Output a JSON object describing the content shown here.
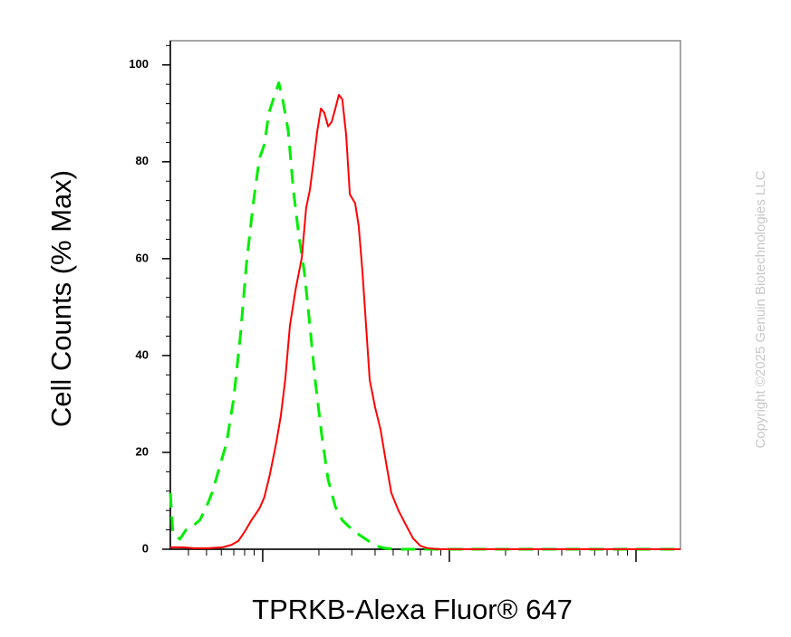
{
  "chart_data": {
    "type": "line",
    "x_label": "TPRKB-Alexa Fluor® 647",
    "y_label": "Cell Counts (% Max)",
    "watermark": "Copyright ©2025 Genuin Biotechnologies LLC",
    "xscale": "log",
    "xlim": [
      32,
      17300
    ],
    "xticks": [
      100,
      1000,
      10000
    ],
    "ylim": [
      0,
      105
    ],
    "yticks": [
      0,
      20,
      40,
      60,
      80,
      100
    ],
    "grid": false,
    "series": [
      {
        "color": "#00ee00",
        "line_style": "dashed",
        "x": [
          32,
          33,
          36,
          39,
          42,
          46,
          50,
          54,
          58,
          64,
          70,
          76,
          82,
          89,
          96,
          102,
          108,
          116,
          122,
          128,
          137,
          146,
          156,
          167,
          179,
          191,
          207,
          224,
          245,
          267,
          289,
          323,
          362,
          404,
          452,
          535,
          17300
        ],
        "values": [
          11.6,
          3.2,
          2.1,
          4.1,
          4.7,
          6.0,
          8.8,
          12.0,
          16.3,
          21.9,
          31.2,
          44.3,
          59.3,
          71.4,
          80.7,
          83.5,
          90.1,
          93.8,
          96.3,
          92.9,
          86.4,
          74.2,
          64.9,
          57.4,
          46.2,
          35.0,
          23.7,
          14.4,
          8.8,
          6.0,
          4.7,
          3.2,
          1.9,
          0.7,
          0.2,
          0,
          0
        ]
      },
      {
        "color": "#ff0000",
        "line_style": "solid",
        "x": [
          32,
          37,
          43,
          51,
          61,
          68,
          74,
          80,
          87,
          96,
          102,
          109,
          118,
          125,
          132,
          140,
          150,
          162,
          171,
          179,
          187,
          196,
          205,
          214,
          224,
          234,
          245,
          256,
          267,
          280,
          293,
          313,
          327,
          342,
          358,
          374,
          400,
          428,
          457,
          489,
          535,
          585,
          640,
          700,
          764,
          885,
          17300
        ],
        "values": [
          0.4,
          0.4,
          0.2,
          0.2,
          0.4,
          0.9,
          1.7,
          3.6,
          6.0,
          8.4,
          10.7,
          15.3,
          21.9,
          27.5,
          35.0,
          46.2,
          53.6,
          60.2,
          70.5,
          74.2,
          79.8,
          86.4,
          91.0,
          90.1,
          87.3,
          88.2,
          91.0,
          93.8,
          92.9,
          85.4,
          73.3,
          71.4,
          66.7,
          57.4,
          46.2,
          35.0,
          29.3,
          24.7,
          18.1,
          11.6,
          7.9,
          5.0,
          2.2,
          0.7,
          0.2,
          0,
          0
        ]
      }
    ]
  }
}
